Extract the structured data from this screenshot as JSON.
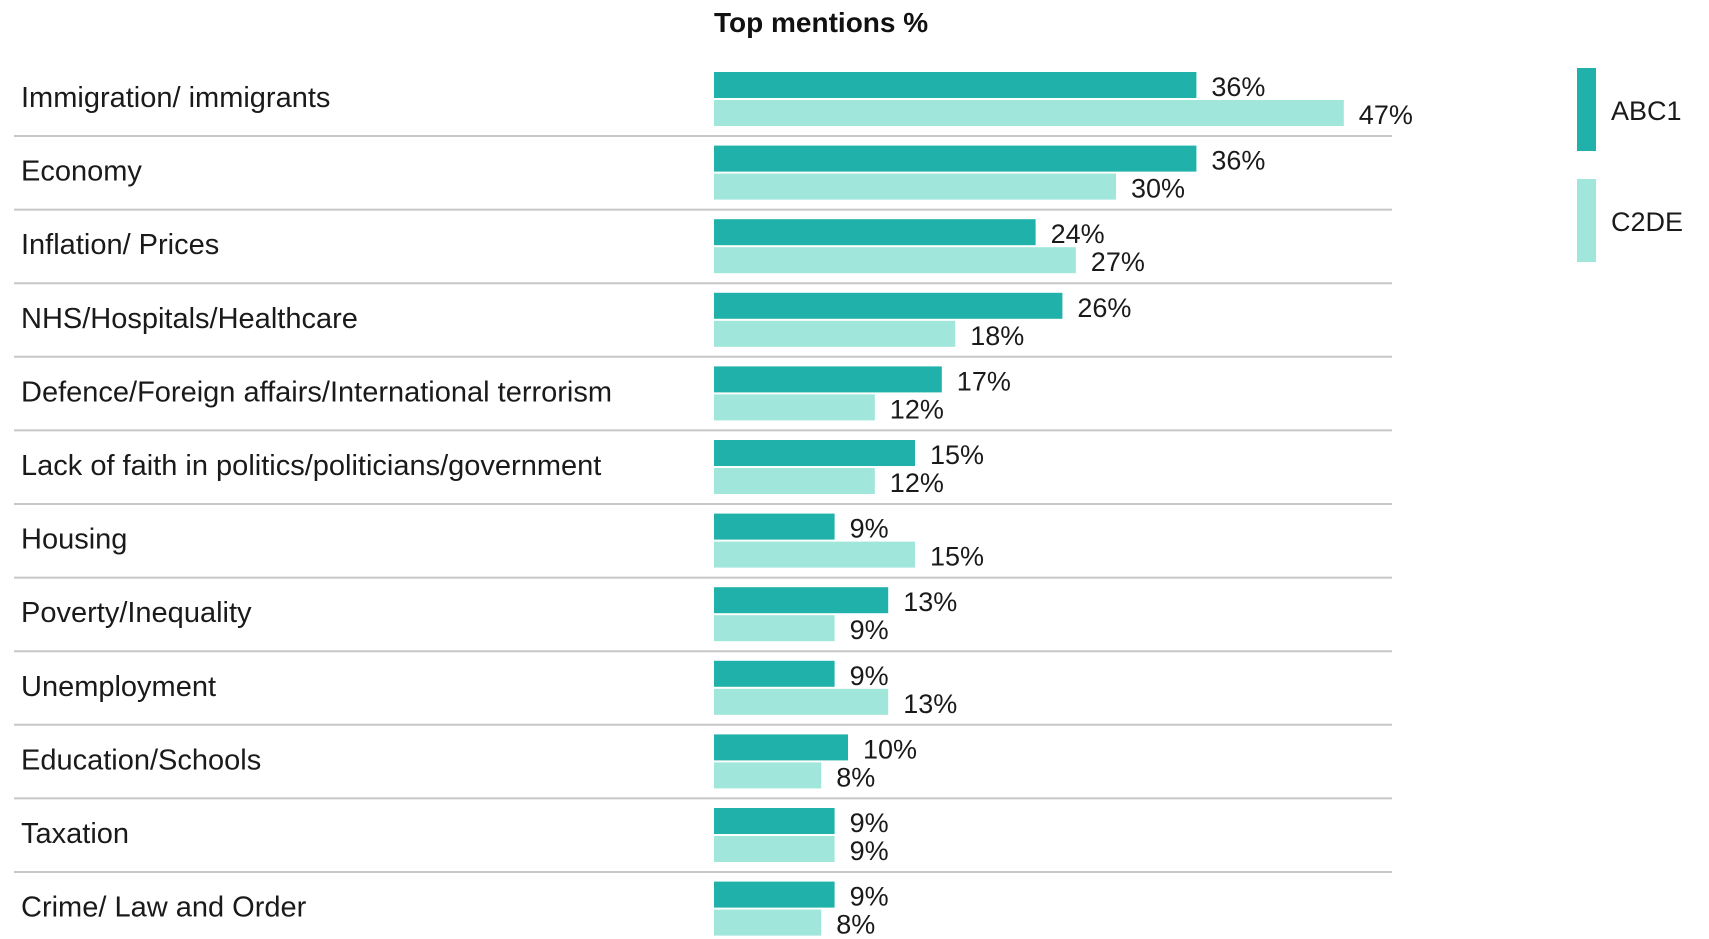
{
  "chart_data": {
    "type": "bar",
    "orientation": "horizontal",
    "title": "Top mentions %",
    "categories": [
      "Immigration/ immigrants",
      "Economy",
      "Inflation/ Prices",
      "NHS/Hospitals/Healthcare",
      "Defence/Foreign affairs/International terrorism",
      "Lack of faith in politics/politicians/government",
      "Housing",
      "Poverty/Inequality",
      "Unemployment",
      "Education/Schools",
      "Taxation",
      "Crime/ Law and Order"
    ],
    "series": [
      {
        "name": "ABC1",
        "color": "#20b2aa",
        "values": [
          36,
          36,
          24,
          26,
          17,
          15,
          9,
          13,
          9,
          10,
          9,
          9
        ]
      },
      {
        "name": "C2DE",
        "color": "#a0e6da",
        "values": [
          47,
          30,
          27,
          18,
          12,
          12,
          15,
          9,
          13,
          8,
          9,
          8
        ]
      }
    ],
    "value_suffix": "%",
    "xlim": [
      0,
      50
    ],
    "grid": false,
    "legend_position": "right"
  }
}
